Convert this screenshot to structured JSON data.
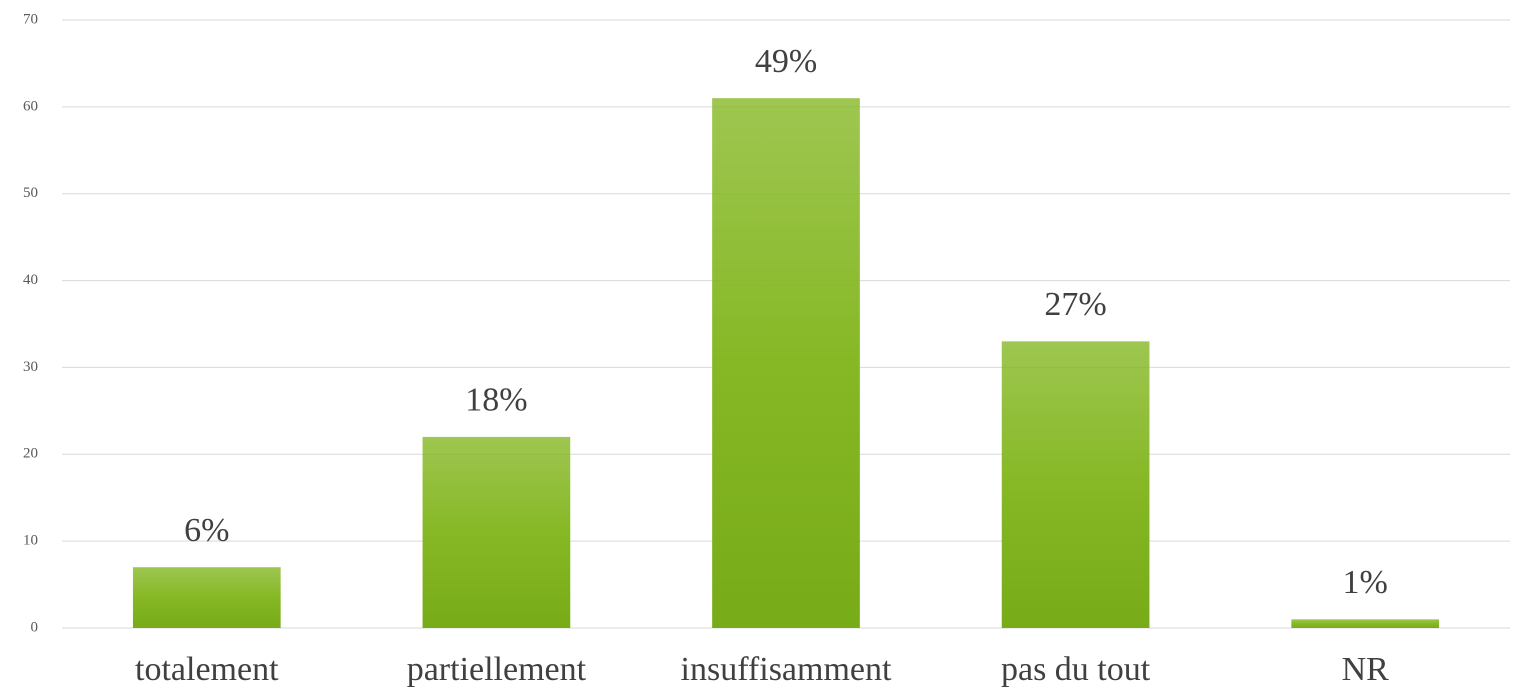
{
  "chart_data": {
    "type": "bar",
    "categories": [
      "totalement",
      "partiellement",
      "insuffisamment",
      "pas du tout",
      "NR"
    ],
    "values": [
      7,
      22,
      61,
      33,
      1
    ],
    "value_labels": [
      "6%",
      "18%",
      "49%",
      "27%",
      "1%"
    ],
    "color": "#86b825",
    "ylim": [
      0,
      70
    ],
    "yticks": [
      0,
      10,
      20,
      30,
      40,
      50,
      60,
      70
    ],
    "grid": true
  }
}
